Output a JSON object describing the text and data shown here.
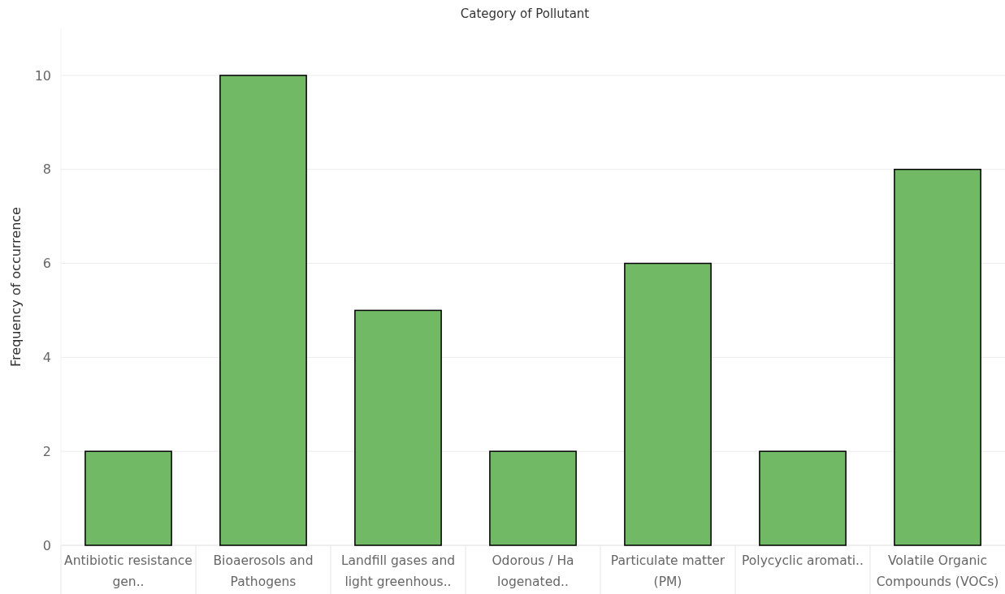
{
  "chart_data": {
    "type": "bar",
    "title": "Category of Pollutant",
    "ylabel": "Frequency of occurrence",
    "categories": [
      "Antibiotic resistance gen..",
      "Bioaerosols and Pathogens",
      "Landfill gases and light greenhous..",
      "Odorous / Ha logenated..",
      "Particulate matter (PM)",
      "Polycyclic aromati..",
      "Volatile Organic Compounds (VOCs)"
    ],
    "values": [
      2,
      10,
      5,
      2,
      6,
      2,
      8
    ],
    "color": "#71b964",
    "ylim": [
      0,
      11
    ],
    "yticks": [
      0,
      2,
      4,
      6,
      8,
      10
    ],
    "grid": "y"
  }
}
